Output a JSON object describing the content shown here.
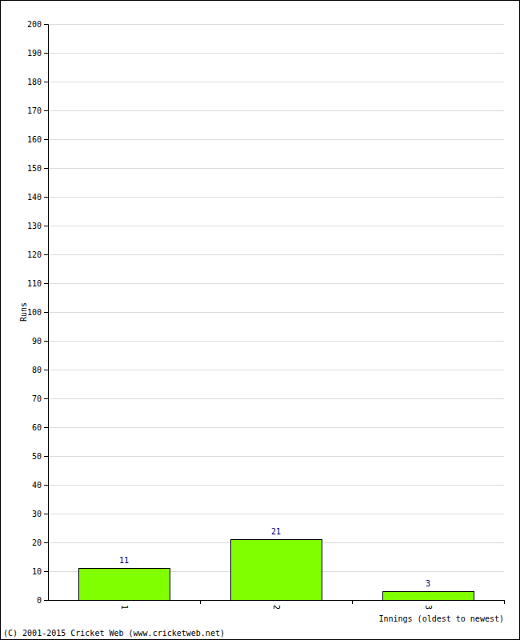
{
  "chart_data": {
    "type": "bar",
    "categories": [
      "1",
      "2",
      "3"
    ],
    "values": [
      11,
      21,
      3
    ],
    "color": "#80ff00",
    "x_label": "Innings (oldest to newest)",
    "y_label": "Runs",
    "annotations": [
      "(C) 2001-2015 Cricket Web (www.cricketweb.net)"
    ],
    "ylim": [
      0,
      200
    ],
    "yticks": [
      0,
      10,
      20,
      30,
      40,
      50,
      60,
      70,
      80,
      90,
      100,
      110,
      120,
      130,
      140,
      150,
      160,
      170,
      180,
      190,
      200
    ],
    "grid": true,
    "data_labels": true
  }
}
